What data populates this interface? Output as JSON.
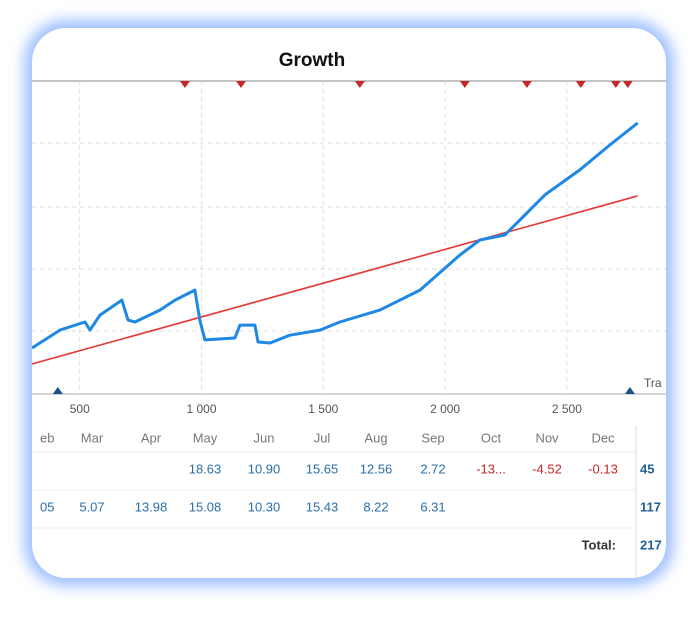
{
  "chart_data": {
    "type": "line",
    "title": "Growth",
    "legend_fragment": "Tra",
    "x": [
      304,
      419,
      521,
      542,
      583,
      673,
      698,
      727,
      829,
      891,
      973,
      993,
      1014,
      1137,
      1158,
      1219,
      1232,
      1281,
      1363,
      1486,
      1568,
      1732,
      1897,
      2061,
      2143,
      2245,
      2307,
      2410,
      2553,
      2677,
      2791
    ],
    "series": [
      {
        "color": "#1e88e5",
        "values": [
          14.7,
          20.4,
          23,
          20.4,
          25.2,
          30,
          23.6,
          23,
          26.8,
          30,
          33.2,
          23.6,
          17.3,
          17.9,
          22,
          22,
          16.6,
          16.3,
          18.8,
          20.4,
          23,
          26.8,
          33.2,
          44.4,
          49.2,
          50.8,
          55.6,
          63.6,
          71.6,
          79.6,
          86.6
        ]
      }
    ],
    "trend": {
      "color": "#e53935",
      "x": [
        304,
        2791
      ],
      "values": [
        9.6,
        63.3
      ]
    },
    "markers_top": {
      "color": "#c62828",
      "x": [
        932,
        1162,
        1650,
        2081,
        2336,
        2557,
        2701,
        2750
      ]
    },
    "markers_bottom": {
      "color": "#1a4f8a",
      "x": [
        410,
        2759
      ]
    },
    "xlim": [
      304,
      2907
    ],
    "ylim": [
      0,
      100
    ],
    "xticks": [
      {
        "value": 500,
        "label": "500"
      },
      {
        "value": 1000,
        "label": "1 000"
      },
      {
        "value": 1500,
        "label": "1 500"
      },
      {
        "value": 2000,
        "label": "2 000"
      },
      {
        "value": 2500,
        "label": "2 500"
      }
    ]
  },
  "table": {
    "header": [
      "eb",
      "Mar",
      "Apr",
      "May",
      "Jun",
      "Jul",
      "Aug",
      "Sep",
      "Oct",
      "Nov",
      "Dec"
    ],
    "rows": [
      {
        "cells": [
          null,
          null,
          null,
          "18.63",
          "10.90",
          "15.65",
          "12.56",
          "2.72",
          "-13...",
          "-4.52",
          "-0.13"
        ],
        "total": "45"
      },
      {
        "cells": [
          "05",
          "5.07",
          "13.98",
          "15.08",
          "10.30",
          "15.43",
          "8.22",
          "6.31",
          null,
          null,
          null
        ],
        "total": "117"
      }
    ],
    "total_label": "Total:",
    "total_value": "217"
  }
}
